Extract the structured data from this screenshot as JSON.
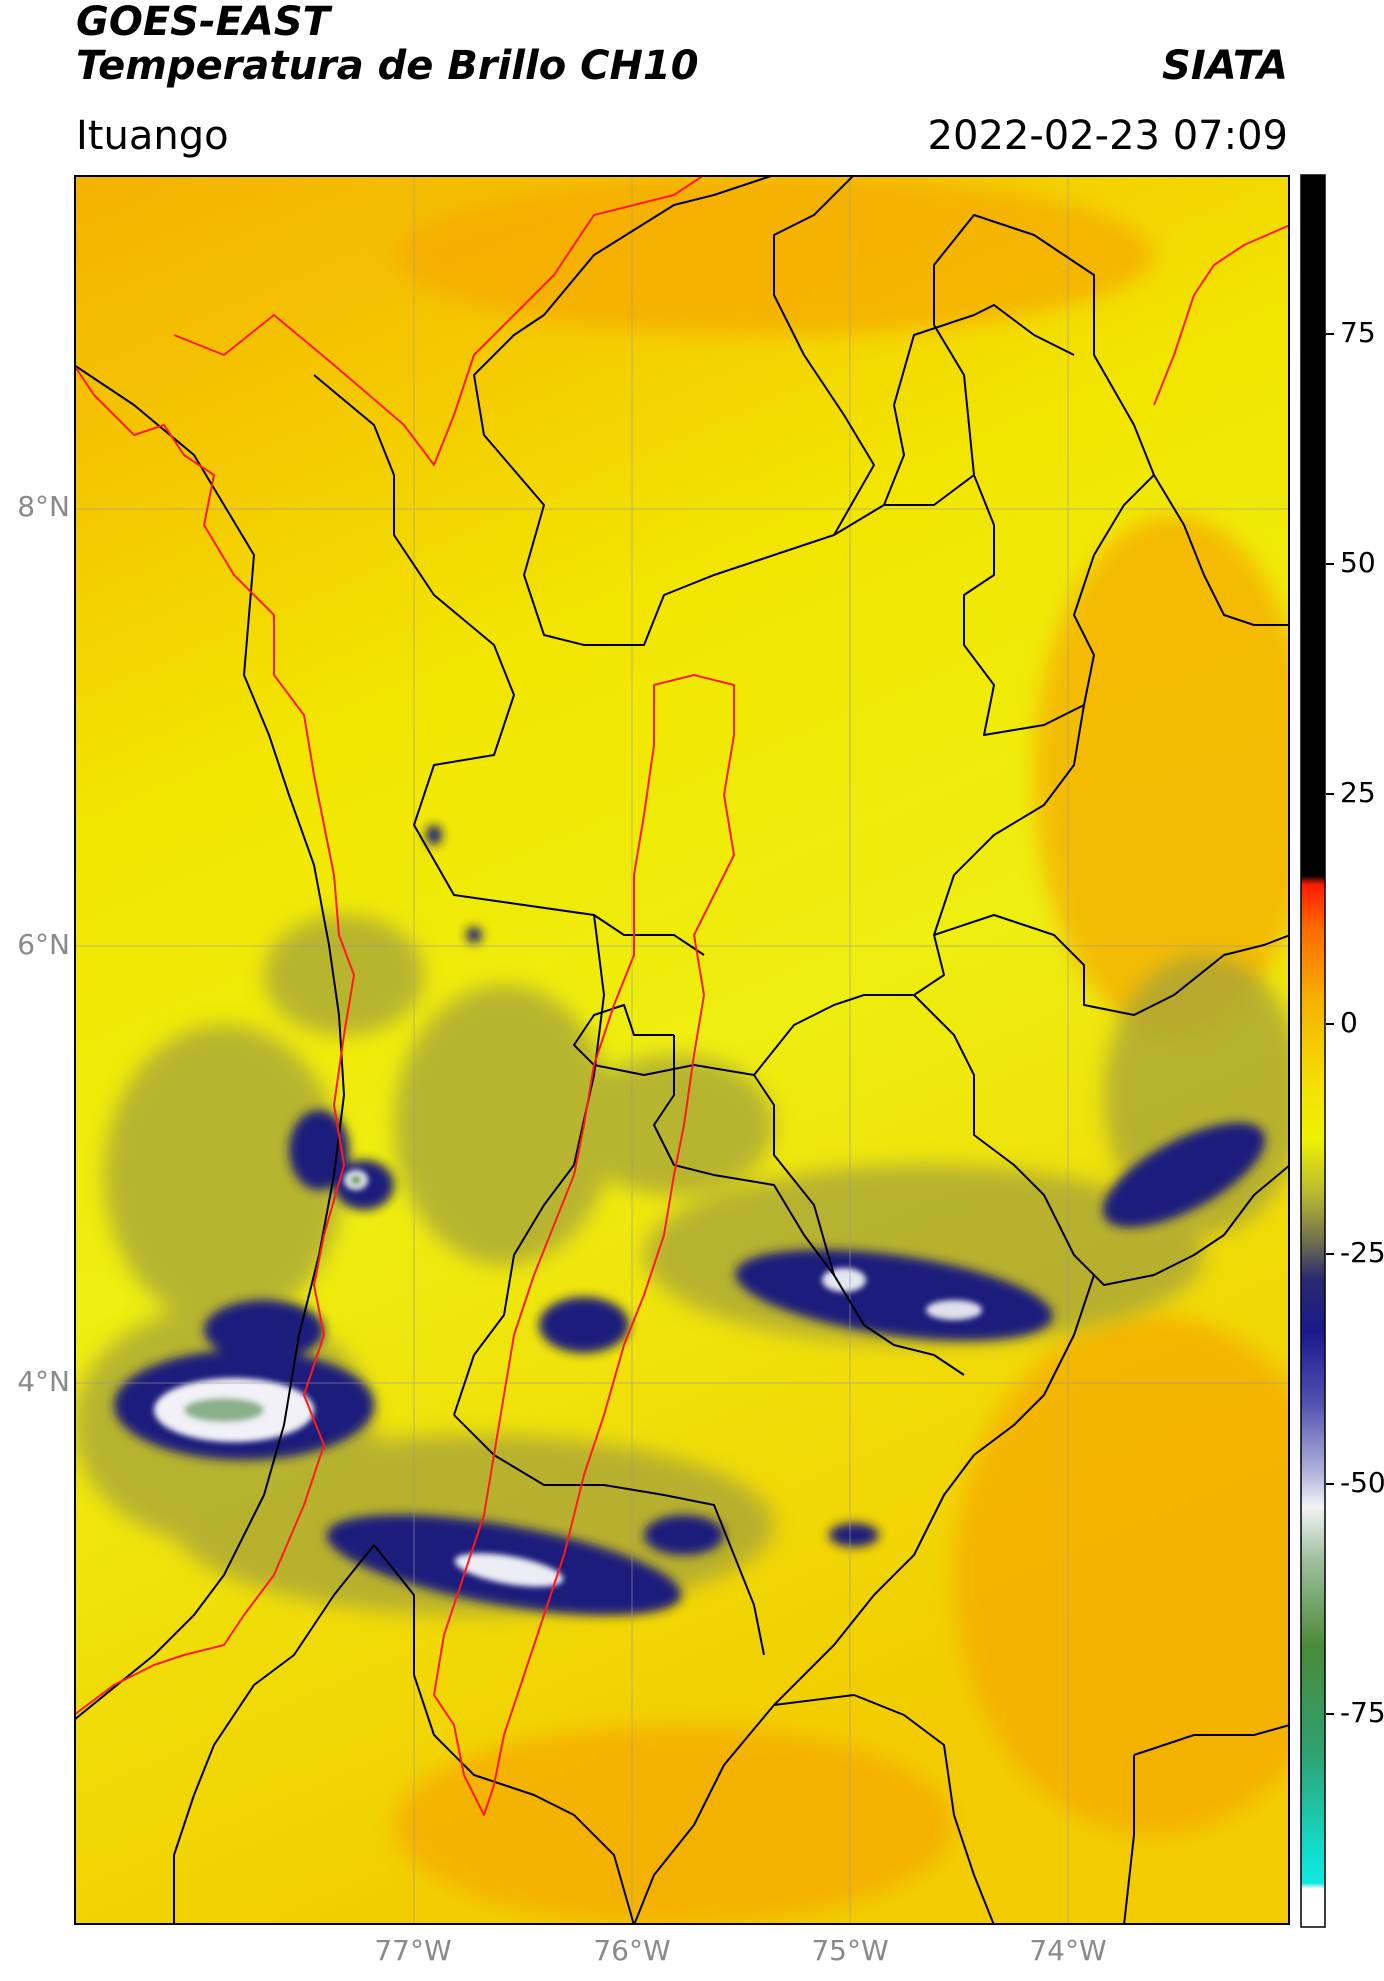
{
  "header": {
    "satellite": "GOES-EAST",
    "product": "Temperatura de Brillo CH10",
    "org": "SIATA",
    "region": "Ituango",
    "timestamp": "2022-02-23 07:09"
  },
  "map": {
    "lat_labels": [
      "8°N",
      "6°N",
      "4°N"
    ],
    "lon_labels": [
      "77°W",
      "76°W",
      "75°W",
      "74°W"
    ],
    "lat_range": [
      2.2,
      9.5
    ],
    "lon_range": [
      -78.6,
      -73.0
    ],
    "colors": {
      "warm": "#f5c400",
      "orange": "#f6ae00",
      "yellow": "#f2f000",
      "olive": "#9a9a3a",
      "navy": "#1c1f7c",
      "white": "#f1f1f7",
      "green": "#6aa060",
      "border_black": "#000000",
      "border_red": "#ff1a1a",
      "grid": "#9a9a9a"
    }
  },
  "colorbar": {
    "ticks": [
      "75",
      "50",
      "25",
      "0",
      "-25",
      "-50",
      "-75"
    ],
    "range": [
      -95,
      90
    ]
  }
}
